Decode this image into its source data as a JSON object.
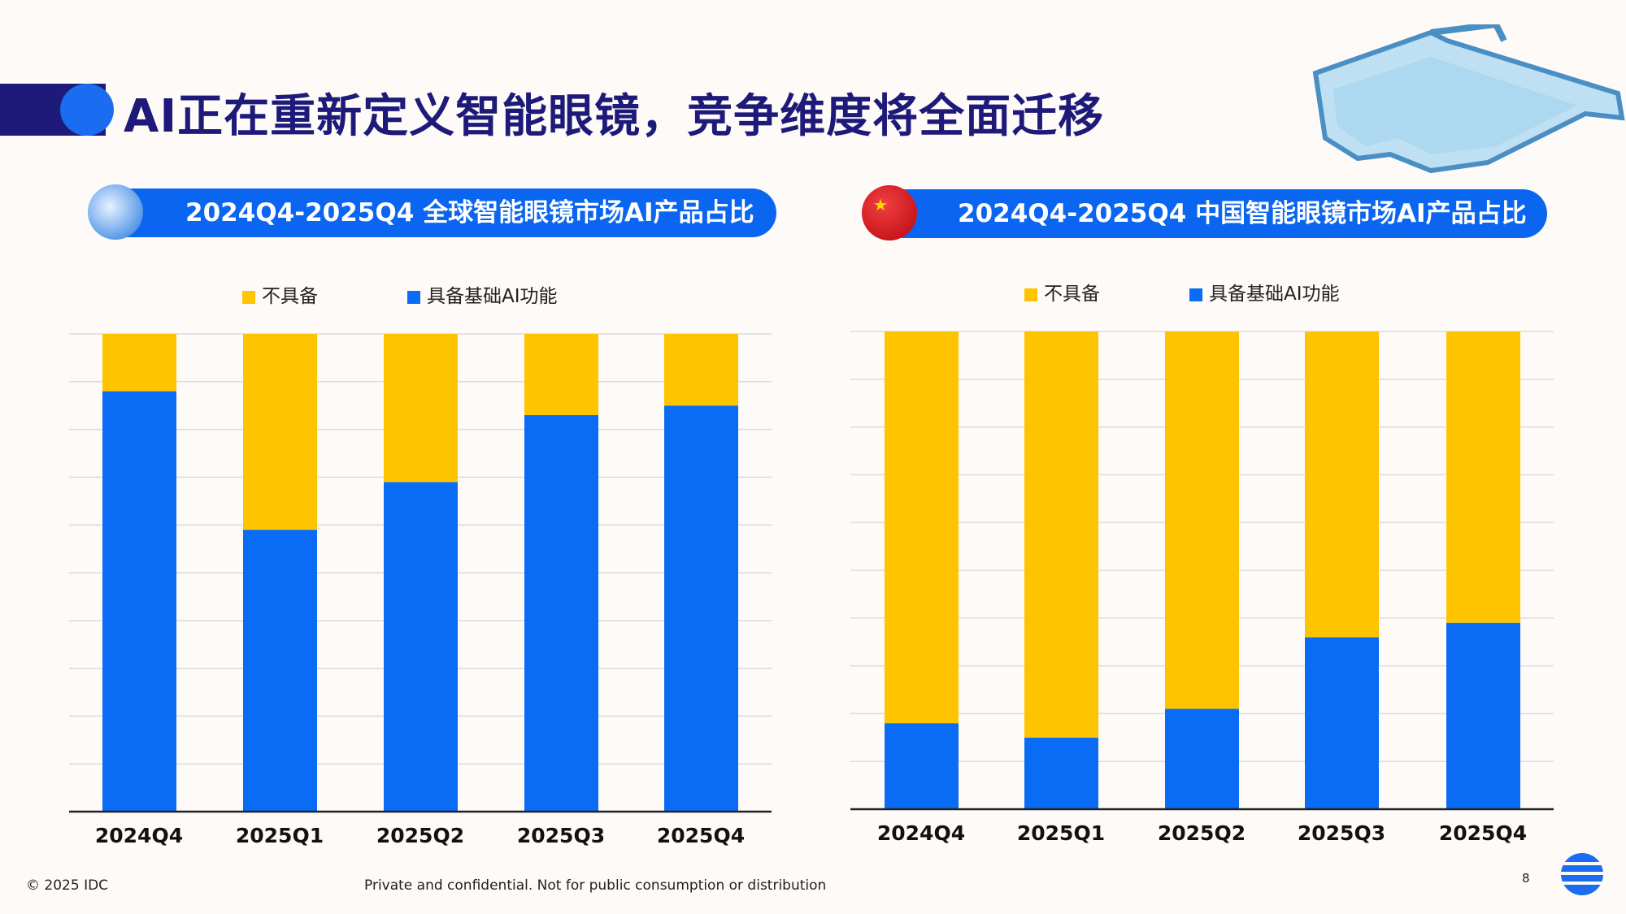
{
  "title": "AI正在重新定义智能眼镜，竞争维度将全面迁移",
  "colors": {
    "blue": "#0a6cf5",
    "yellow": "#ffc400",
    "navy": "#1e1a7a"
  },
  "chart_data": [
    {
      "type": "bar",
      "stacked": true,
      "title": "2024Q4-2025Q4 全球智能眼镜市场AI产品占比",
      "badge_icon": "globe-icon",
      "categories": [
        "2024Q4",
        "2025Q1",
        "2025Q2",
        "2025Q3",
        "2025Q4"
      ],
      "ylim": [
        0,
        100
      ],
      "grid": true,
      "legend_position": "top",
      "series": [
        {
          "name": "不具备",
          "color": "#ffc400",
          "values": [
            12,
            41,
            31,
            17,
            15
          ]
        },
        {
          "name": "具备基础AI功能",
          "color": "#0a6cf5",
          "values": [
            88,
            59,
            69,
            83,
            85
          ]
        }
      ]
    },
    {
      "type": "bar",
      "stacked": true,
      "title": "2024Q4-2025Q4 中国智能眼镜市场AI产品占比",
      "badge_icon": "china-flag-icon",
      "categories": [
        "2024Q4",
        "2025Q1",
        "2025Q2",
        "2025Q3",
        "2025Q4"
      ],
      "ylim": [
        0,
        100
      ],
      "grid": true,
      "legend_position": "top",
      "series": [
        {
          "name": "不具备",
          "color": "#ffc400",
          "values": [
            82,
            85,
            79,
            64,
            61
          ]
        },
        {
          "name": "具备基础AI功能",
          "color": "#0a6cf5",
          "values": [
            18,
            15,
            21,
            36,
            39
          ]
        }
      ]
    }
  ],
  "footer": {
    "copyright": "© 2025 IDC",
    "notice": "Private and confidential. Not for public consumption or distribution",
    "page": "8"
  }
}
